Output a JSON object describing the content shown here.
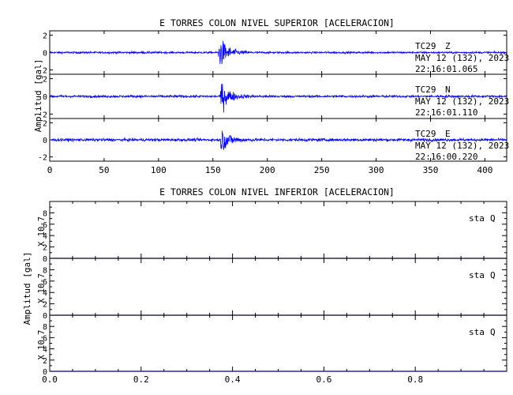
{
  "chart_data": [
    {
      "type": "line",
      "title": "E TORRES COLON NIVEL SUPERIOR [ACELERACION]",
      "ylabel": "Amplitud [gal]",
      "xlim": [
        0,
        420
      ],
      "x_ticks": [
        "0",
        "50",
        "100",
        "150",
        "200",
        "250",
        "300",
        "350",
        "400"
      ],
      "x_tick_values": [
        0,
        50,
        100,
        150,
        200,
        250,
        300,
        350,
        400
      ],
      "ylim": [
        -2.5,
        2.5
      ],
      "y_ticks": [
        "2",
        "0",
        "-2"
      ],
      "y_tick_values": [
        2,
        0,
        -2
      ],
      "line_color": "#0000ff",
      "series": [
        {
          "name": "TC29 Z",
          "date": "MAY 12 (132), 2023",
          "time": "22:16:01.065",
          "onset": 155,
          "peak": 2.3,
          "noise": 0.12
        },
        {
          "name": "TC29 N",
          "date": "MAY 12 (132), 2023",
          "time": "22:16:01.110",
          "onset": 157,
          "peak": 2.0,
          "noise": 0.14
        },
        {
          "name": "TC29 E",
          "date": "MAY 12 (132), 2023",
          "time": "22:16:00.220",
          "onset": 157,
          "peak": 1.8,
          "noise": 0.18
        }
      ]
    },
    {
      "type": "line",
      "title": "E TORRES COLON NIVEL INFERIOR [ACELERACION]",
      "ylabel": "Amplitud [gal]",
      "scale_label": "X 10-7",
      "xlim": [
        0,
        1
      ],
      "x_ticks": [
        "0.0",
        "0.2",
        "0.4",
        "0.6",
        "0.8"
      ],
      "x_tick_values": [
        0,
        0.2,
        0.4,
        0.6,
        0.8
      ],
      "ylim": [
        0,
        10
      ],
      "y_ticks": [
        "8",
        "6",
        "4",
        "2",
        "0"
      ],
      "y_tick_values": [
        8,
        6,
        4,
        2,
        0
      ],
      "line_color": "#000080",
      "series": [
        {
          "name": "sta Q",
          "values": [
            0,
            0
          ]
        },
        {
          "name": "sta Q",
          "values": [
            0,
            0
          ]
        },
        {
          "name": "sta Q",
          "values": [
            0,
            0
          ]
        }
      ]
    }
  ]
}
